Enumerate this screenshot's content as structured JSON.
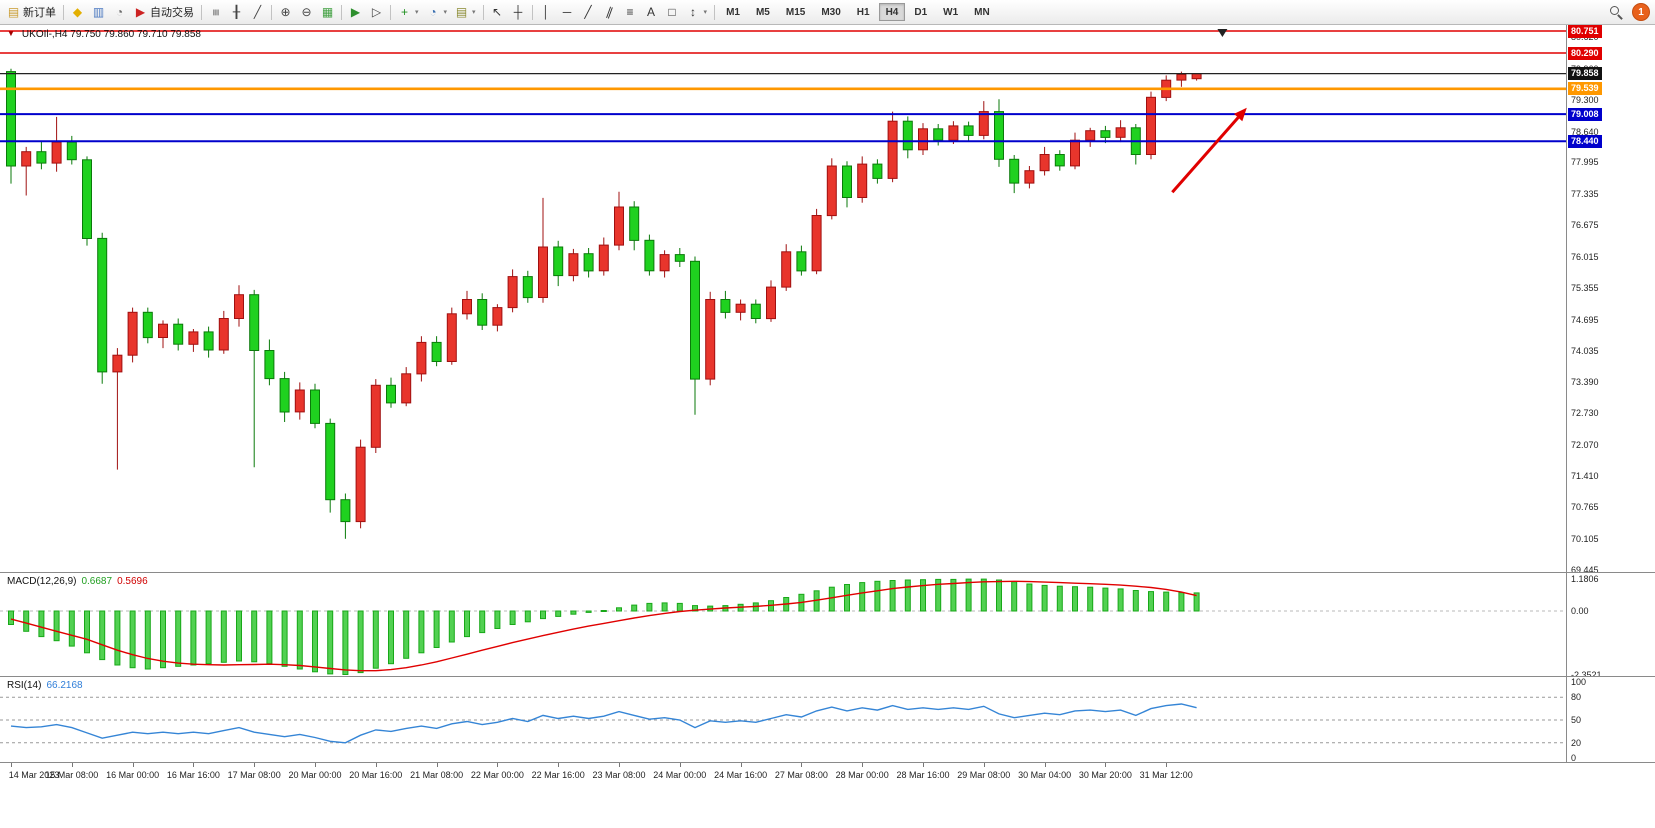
{
  "toolbar": {
    "items": [
      {
        "t": "btn",
        "name": "new-order-button",
        "glyph": "▤",
        "gc": "#c99b2e",
        "label": "新订单"
      },
      {
        "t": "sep"
      },
      {
        "t": "btn",
        "name": "objects-icon",
        "glyph": "◆",
        "gc": "#e3af00"
      },
      {
        "t": "btn",
        "name": "market-watch-icon",
        "glyph": "▥",
        "gc": "#4a78c0"
      },
      {
        "t": "btn",
        "name": "navigator-icon",
        "glyph": "◔",
        "gc": "#6a6a6a"
      },
      {
        "t": "btn",
        "name": "autotrade-button",
        "glyph": "▶",
        "gc": "#cc2222",
        "label": "自动交易"
      },
      {
        "t": "sep"
      },
      {
        "t": "btn",
        "name": "bar-chart-icon",
        "glyph": "≡",
        "gc": "#444444",
        "rot": 90
      },
      {
        "t": "btn",
        "name": "candlestick-chart-icon",
        "glyph": "╂",
        "gc": "#444444"
      },
      {
        "t": "btn",
        "name": "line-chart-icon",
        "glyph": "╱",
        "gc": "#444444"
      },
      {
        "t": "sep"
      },
      {
        "t": "btn",
        "name": "zoom-in-icon",
        "glyph": "⊕",
        "gc": "#444444"
      },
      {
        "t": "btn",
        "name": "zoom-out-icon",
        "glyph": "⊖",
        "gc": "#444444"
      },
      {
        "t": "btn",
        "name": "tile-windows-icon",
        "glyph": "▦",
        "gc": "#3f9f3f"
      },
      {
        "t": "sep"
      },
      {
        "t": "btn",
        "name": "auto-scroll-icon",
        "glyph": "▶",
        "gc": "#2d8f2d"
      },
      {
        "t": "btn",
        "name": "chart-shift-icon",
        "glyph": "▷",
        "gc": "#444444"
      },
      {
        "t": "sep"
      },
      {
        "t": "btn",
        "name": "indicators-icon",
        "glyph": "+",
        "gc": "#1f8f1f",
        "dd": true
      },
      {
        "t": "btn",
        "name": "periods-icon",
        "glyph": "◔",
        "gc": "#3a6fb0",
        "dd": true
      },
      {
        "t": "btn",
        "name": "templates-icon",
        "glyph": "▤",
        "gc": "#8a8a30",
        "dd": true
      },
      {
        "t": "sep"
      },
      {
        "t": "btn",
        "name": "cursor-icon",
        "glyph": "↖",
        "gc": "#333333"
      },
      {
        "t": "btn",
        "name": "crosshair-icon",
        "glyph": "┼",
        "gc": "#333333"
      },
      {
        "t": "sep"
      },
      {
        "t": "btn",
        "name": "vertical-line-icon",
        "glyph": "│",
        "gc": "#333333"
      },
      {
        "t": "btn",
        "name": "horizontal-line-icon",
        "glyph": "─",
        "gc": "#333333"
      },
      {
        "t": "btn",
        "name": "trendline-icon",
        "glyph": "╱",
        "gc": "#333333"
      },
      {
        "t": "btn",
        "name": "channel-icon",
        "glyph": "∥",
        "gc": "#333333",
        "rot": 20
      },
      {
        "t": "btn",
        "name": "fibonacci-icon",
        "glyph": "≡",
        "gc": "#333333"
      },
      {
        "t": "btn",
        "name": "text-icon",
        "glyph": "A",
        "gc": "#333333"
      },
      {
        "t": "btn",
        "name": "shapes-icon",
        "glyph": "□",
        "gc": "#333333"
      },
      {
        "t": "btn",
        "name": "arrows-icon",
        "glyph": "↕",
        "gc": "#333333",
        "dd": true
      },
      {
        "t": "sep"
      }
    ],
    "timeframes": [
      "M1",
      "M5",
      "M15",
      "M30",
      "H1",
      "H4",
      "D1",
      "W1",
      "MN"
    ],
    "active_timeframe": "H4",
    "notification_count": "1"
  },
  "chart": {
    "one_click_glyph": "▼",
    "symbol_label": "UKOIl-,H4 79.750 79.860 79.710 79.858",
    "price_axis": {
      "labels": [
        "80.620",
        "79.960",
        "79.300",
        "78.640",
        "77.995",
        "77.335",
        "76.675",
        "76.015",
        "75.355",
        "74.695",
        "74.035",
        "73.390",
        "72.730",
        "72.070",
        "71.410",
        "70.765",
        "70.105",
        "69.445"
      ],
      "badges": [
        {
          "value": "80.751",
          "bg": "#e00000"
        },
        {
          "value": "80.290",
          "bg": "#e00000"
        },
        {
          "value": "79.858",
          "bg": "#111111"
        },
        {
          "value": "79.539",
          "bg": "#ff9800"
        },
        {
          "value": "79.008",
          "bg": "#0000cc"
        },
        {
          "value": "78.440",
          "bg": "#0000cc"
        }
      ]
    },
    "macd_label": {
      "name": "MACD(12,26,9)",
      "main": "0.6687",
      "signal": "0.5696"
    },
    "macd_axis": [
      "1.1806",
      "0.00",
      "-2.3521"
    ],
    "rsi_label": {
      "name": "RSI(14)",
      "value": "66.2168"
    },
    "rsi_axis": [
      "100",
      "80",
      "50",
      "20",
      "0"
    ]
  },
  "chart_data": [
    {
      "type": "candlestick",
      "title": "UKOIl- H4",
      "ylim": [
        69.3,
        80.95
      ],
      "up_color": "#e8352c",
      "down_color": "#1fd11f",
      "up_border": "#a01010",
      "down_border": "#0a7a0a",
      "x_labels": [
        "14 Mar 2023",
        "15 Mar 08:00",
        "16 Mar 00:00",
        "16 Mar 16:00",
        "17 Mar 08:00",
        "20 Mar 00:00",
        "20 Mar 16:00",
        "21 Mar 08:00",
        "22 Mar 00:00",
        "22 Mar 16:00",
        "23 Mar 08:00",
        "24 Mar 00:00",
        "24 Mar 16:00",
        "27 Mar 08:00",
        "28 Mar 00:00",
        "28 Mar 16:00",
        "29 Mar 08:00",
        "30 Mar 04:00",
        "30 Mar 20:00",
        "31 Mar 12:00"
      ],
      "candles": [
        [
          79.9,
          79.96,
          77.55,
          77.92
        ],
        [
          77.92,
          78.32,
          77.3,
          78.22
        ],
        [
          78.22,
          78.45,
          77.85,
          77.98
        ],
        [
          77.98,
          78.95,
          77.8,
          78.42
        ],
        [
          78.42,
          78.55,
          77.95,
          78.05
        ],
        [
          78.05,
          78.12,
          76.25,
          76.4
        ],
        [
          76.4,
          76.52,
          73.35,
          73.6
        ],
        [
          73.6,
          74.1,
          71.55,
          73.95
        ],
        [
          73.95,
          74.95,
          73.8,
          74.85
        ],
        [
          74.85,
          74.95,
          74.2,
          74.32
        ],
        [
          74.32,
          74.68,
          74.1,
          74.6
        ],
        [
          74.6,
          74.72,
          74.05,
          74.18
        ],
        [
          74.18,
          74.5,
          74.02,
          74.44
        ],
        [
          74.44,
          74.55,
          73.9,
          74.06
        ],
        [
          74.06,
          74.88,
          73.98,
          74.72
        ],
        [
          74.72,
          75.42,
          74.55,
          75.22
        ],
        [
          75.22,
          75.32,
          71.6,
          74.05
        ],
        [
          74.05,
          74.28,
          73.32,
          73.46
        ],
        [
          73.46,
          73.6,
          72.55,
          72.76
        ],
        [
          72.76,
          73.38,
          72.6,
          73.22
        ],
        [
          73.22,
          73.35,
          72.42,
          72.52
        ],
        [
          72.52,
          72.62,
          70.65,
          70.92
        ],
        [
          70.92,
          71.05,
          70.1,
          70.46
        ],
        [
          70.46,
          72.18,
          70.32,
          72.02
        ],
        [
          72.02,
          73.45,
          71.9,
          73.32
        ],
        [
          73.32,
          73.48,
          72.85,
          72.95
        ],
        [
          72.95,
          73.7,
          72.88,
          73.56
        ],
        [
          73.56,
          74.35,
          73.4,
          74.22
        ],
        [
          74.22,
          74.35,
          73.72,
          73.82
        ],
        [
          73.82,
          74.95,
          73.75,
          74.82
        ],
        [
          74.82,
          75.3,
          74.7,
          75.12
        ],
        [
          75.12,
          75.25,
          74.48,
          74.58
        ],
        [
          74.58,
          75.02,
          74.45,
          74.95
        ],
        [
          74.95,
          75.75,
          74.85,
          75.6
        ],
        [
          75.6,
          75.72,
          75.05,
          75.16
        ],
        [
          75.16,
          77.25,
          75.05,
          76.22
        ],
        [
          76.22,
          76.35,
          75.4,
          75.62
        ],
        [
          75.62,
          76.18,
          75.5,
          76.08
        ],
        [
          76.08,
          76.2,
          75.58,
          75.72
        ],
        [
          75.72,
          76.42,
          75.62,
          76.26
        ],
        [
          76.26,
          77.38,
          76.15,
          77.06
        ],
        [
          77.06,
          77.18,
          76.15,
          76.36
        ],
        [
          76.36,
          76.48,
          75.62,
          75.72
        ],
        [
          75.72,
          76.15,
          75.58,
          76.06
        ],
        [
          76.06,
          76.2,
          75.8,
          75.92
        ],
        [
          75.92,
          76.02,
          72.7,
          73.45
        ],
        [
          73.45,
          75.28,
          73.32,
          75.12
        ],
        [
          75.12,
          75.3,
          74.72,
          74.85
        ],
        [
          74.85,
          75.12,
          74.68,
          75.02
        ],
        [
          75.02,
          75.12,
          74.62,
          74.72
        ],
        [
          74.72,
          75.52,
          74.65,
          75.38
        ],
        [
          75.38,
          76.28,
          75.3,
          76.12
        ],
        [
          76.12,
          76.25,
          75.62,
          75.72
        ],
        [
          75.72,
          77.02,
          75.65,
          76.88
        ],
        [
          76.88,
          78.08,
          76.8,
          77.92
        ],
        [
          77.92,
          78.02,
          77.05,
          77.26
        ],
        [
          77.26,
          78.12,
          77.15,
          77.96
        ],
        [
          77.96,
          78.06,
          77.55,
          77.66
        ],
        [
          77.66,
          79.06,
          77.58,
          78.86
        ],
        [
          78.86,
          78.96,
          78.08,
          78.26
        ],
        [
          78.26,
          78.82,
          78.15,
          78.7
        ],
        [
          78.7,
          78.8,
          78.35,
          78.46
        ],
        [
          78.46,
          78.86,
          78.38,
          78.76
        ],
        [
          78.76,
          78.85,
          78.45,
          78.56
        ],
        [
          78.56,
          79.28,
          78.48,
          79.06
        ],
        [
          79.06,
          79.32,
          77.9,
          78.06
        ],
        [
          78.06,
          78.15,
          77.35,
          77.56
        ],
        [
          77.56,
          77.92,
          77.45,
          77.82
        ],
        [
          77.82,
          78.32,
          77.72,
          78.16
        ],
        [
          78.16,
          78.25,
          77.82,
          77.92
        ],
        [
          77.92,
          78.62,
          77.85,
          78.46
        ],
        [
          78.46,
          78.72,
          78.32,
          78.66
        ],
        [
          78.66,
          78.76,
          78.4,
          78.52
        ],
        [
          78.52,
          78.88,
          78.42,
          78.72
        ],
        [
          78.72,
          78.8,
          77.95,
          78.16
        ],
        [
          78.16,
          79.48,
          78.06,
          79.36
        ],
        [
          79.36,
          79.82,
          79.28,
          79.72
        ],
        [
          79.72,
          79.9,
          79.58,
          79.84
        ],
        [
          79.75,
          79.86,
          79.71,
          79.858
        ]
      ],
      "hlines": [
        {
          "price": 80.751,
          "color": "#e00000",
          "lw": 1.4
        },
        {
          "price": 80.29,
          "color": "#e00000",
          "lw": 1.4
        },
        {
          "price": 79.858,
          "color": "#222222",
          "lw": 1.3
        },
        {
          "price": 79.539,
          "color": "#ff9800",
          "lw": 2.6
        },
        {
          "price": 79.008,
          "color": "#0000cc",
          "lw": 2
        },
        {
          "price": 78.44,
          "color": "#0000cc",
          "lw": 2
        }
      ],
      "annotations": {
        "arrow": {
          "from": [
            76.4,
            77.37
          ],
          "to": [
            81.3,
            79.14
          ],
          "color": "#e00000"
        },
        "triangle_index": 79.7
      }
    },
    {
      "type": "bar",
      "name": "MACD",
      "params": "12,26,9",
      "ylim": [
        -2.3521,
        1.1806
      ],
      "bar_color": "#18a818",
      "bar_fill": "#52d152",
      "signal_color": "#e00000",
      "values": [
        -0.5,
        -0.75,
        -0.95,
        -1.1,
        -1.3,
        -1.55,
        -1.8,
        -2.0,
        -2.1,
        -2.15,
        -2.1,
        -2.05,
        -2.0,
        -1.95,
        -1.9,
        -1.85,
        -1.88,
        -1.95,
        -2.05,
        -2.15,
        -2.25,
        -2.33,
        -2.35,
        -2.28,
        -2.12,
        -1.95,
        -1.75,
        -1.55,
        -1.35,
        -1.15,
        -0.95,
        -0.8,
        -0.65,
        -0.5,
        -0.4,
        -0.28,
        -0.2,
        -0.12,
        -0.05,
        0.02,
        0.12,
        0.22,
        0.28,
        0.3,
        0.28,
        0.2,
        0.18,
        0.2,
        0.25,
        0.3,
        0.38,
        0.5,
        0.62,
        0.75,
        0.88,
        0.98,
        1.05,
        1.1,
        1.13,
        1.15,
        1.16,
        1.17,
        1.17,
        1.18,
        1.18,
        1.15,
        1.08,
        1.0,
        0.95,
        0.92,
        0.9,
        0.88,
        0.85,
        0.82,
        0.76,
        0.72,
        0.7,
        0.68,
        0.6687
      ],
      "signal": [
        -0.3,
        -0.45,
        -0.6,
        -0.75,
        -0.9,
        -1.05,
        -1.25,
        -1.45,
        -1.62,
        -1.76,
        -1.86,
        -1.93,
        -1.97,
        -1.99,
        -2.0,
        -1.99,
        -1.98,
        -1.97,
        -1.99,
        -2.02,
        -2.07,
        -2.13,
        -2.18,
        -2.21,
        -2.21,
        -2.17,
        -2.1,
        -2.0,
        -1.88,
        -1.74,
        -1.6,
        -1.45,
        -1.31,
        -1.17,
        -1.04,
        -0.91,
        -0.79,
        -0.67,
        -0.56,
        -0.46,
        -0.36,
        -0.26,
        -0.17,
        -0.09,
        -0.02,
        0.03,
        0.07,
        0.11,
        0.14,
        0.17,
        0.21,
        0.26,
        0.32,
        0.4,
        0.49,
        0.58,
        0.67,
        0.75,
        0.83,
        0.89,
        0.94,
        0.99,
        1.02,
        1.05,
        1.08,
        1.09,
        1.1,
        1.09,
        1.07,
        1.05,
        1.03,
        1.01,
        0.99,
        0.96,
        0.92,
        0.87,
        0.8,
        0.7,
        0.5696
      ]
    },
    {
      "type": "line",
      "name": "RSI",
      "params": "14",
      "ylim": [
        0,
        100
      ],
      "line_color": "#3585d6",
      "levels": [
        80,
        50,
        20
      ],
      "values": [
        42,
        40,
        41,
        44,
        40,
        33,
        26,
        30,
        34,
        32,
        34,
        32,
        34,
        32,
        36,
        40,
        34,
        31,
        28,
        31,
        27,
        22,
        20,
        30,
        37,
        35,
        39,
        42,
        39,
        45,
        48,
        44,
        47,
        52,
        48,
        56,
        52,
        55,
        52,
        55,
        61,
        56,
        51,
        53,
        50,
        40,
        49,
        47,
        49,
        47,
        52,
        57,
        54,
        62,
        67,
        62,
        66,
        63,
        69,
        64,
        66,
        64,
        66,
        64,
        68,
        58,
        53,
        56,
        59,
        57,
        62,
        63,
        61,
        63,
        56,
        65,
        69,
        71,
        66.2168
      ]
    }
  ]
}
